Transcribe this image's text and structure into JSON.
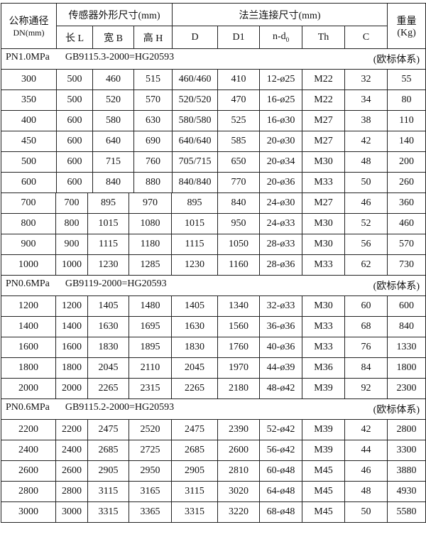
{
  "header": {
    "dn": "公称通径",
    "dn_unit": "DN(mm)",
    "sensor": "传感器外形尺寸(mm)",
    "flange": "法兰连接尺寸(mm)",
    "weight": "重量",
    "weight_unit": "(Kg)",
    "cols": [
      "长 L",
      "宽 B",
      "高 H",
      "D",
      "D1",
      "n-d",
      "Th",
      "C"
    ],
    "nd_sub": "0"
  },
  "sections": [
    {
      "pressure": "PN1.0MPa",
      "standard": "GB9115.3-2000=HG20593",
      "system": "(欧标体系)",
      "rows": [
        [
          "300",
          "500",
          "460",
          "515",
          "460/460",
          "410",
          "12-ø25",
          "M22",
          "32",
          "55"
        ],
        [
          "350",
          "500",
          "520",
          "570",
          "520/520",
          "470",
          "16-ø25",
          "M22",
          "34",
          "80"
        ],
        [
          "400",
          "600",
          "580",
          "630",
          "580/580",
          "525",
          "16-ø30",
          "M27",
          "38",
          "110"
        ],
        [
          "450",
          "600",
          "640",
          "690",
          "640/640",
          "585",
          "20-ø30",
          "M27",
          "42",
          "140"
        ],
        [
          "500",
          "600",
          "715",
          "760",
          "705/715",
          "650",
          "20-ø34",
          "M30",
          "48",
          "200"
        ],
        [
          "600",
          "600",
          "840",
          "880",
          "840/840",
          "770",
          "20-ø36",
          "M33",
          "50",
          "260"
        ],
        [
          "700",
          "700",
          "895",
          "970",
          "895",
          "840",
          "24-ø30",
          "M27",
          "46",
          "360"
        ],
        [
          "800",
          "800",
          "1015",
          "1080",
          "1015",
          "950",
          "24-ø33",
          "M30",
          "52",
          "460"
        ],
        [
          "900",
          "900",
          "1115",
          "1180",
          "1115",
          "1050",
          "28-ø33",
          "M30",
          "56",
          "570"
        ],
        [
          "1000",
          "1000",
          "1230",
          "1285",
          "1230",
          "1160",
          "28-ø36",
          "M33",
          "62",
          "730"
        ]
      ]
    },
    {
      "pressure": "PN0.6MPa",
      "standard": "GB9119-2000=HG20593",
      "system": "(欧标体系)",
      "rows": [
        [
          "1200",
          "1200",
          "1405",
          "1480",
          "1405",
          "1340",
          "32-ø33",
          "M30",
          "60",
          "600"
        ],
        [
          "1400",
          "1400",
          "1630",
          "1695",
          "1630",
          "1560",
          "36-ø36",
          "M33",
          "68",
          "840"
        ],
        [
          "1600",
          "1600",
          "1830",
          "1895",
          "1830",
          "1760",
          "40-ø36",
          "M33",
          "76",
          "1330"
        ],
        [
          "1800",
          "1800",
          "2045",
          "2110",
          "2045",
          "1970",
          "44-ø39",
          "M36",
          "84",
          "1800"
        ],
        [
          "2000",
          "2000",
          "2265",
          "2315",
          "2265",
          "2180",
          "48-ø42",
          "M39",
          "92",
          "2300"
        ]
      ]
    },
    {
      "pressure": "PN0.6MPa",
      "standard": "GB9115.2-2000=HG20593",
      "system": "(欧标体系)",
      "rows": [
        [
          "2200",
          "2200",
          "2475",
          "2520",
          "2475",
          "2390",
          "52-ø42",
          "M39",
          "42",
          "2800"
        ],
        [
          "2400",
          "2400",
          "2685",
          "2725",
          "2685",
          "2600",
          "56-ø42",
          "M39",
          "44",
          "3300"
        ],
        [
          "2600",
          "2600",
          "2905",
          "2950",
          "2905",
          "2810",
          "60-ø48",
          "M45",
          "46",
          "3880"
        ],
        [
          "2800",
          "2800",
          "3115",
          "3165",
          "3115",
          "3020",
          "64-ø48",
          "M45",
          "48",
          "4930"
        ],
        [
          "3000",
          "3000",
          "3315",
          "3365",
          "3315",
          "3220",
          "68-ø48",
          "M45",
          "50",
          "5580"
        ]
      ]
    }
  ]
}
